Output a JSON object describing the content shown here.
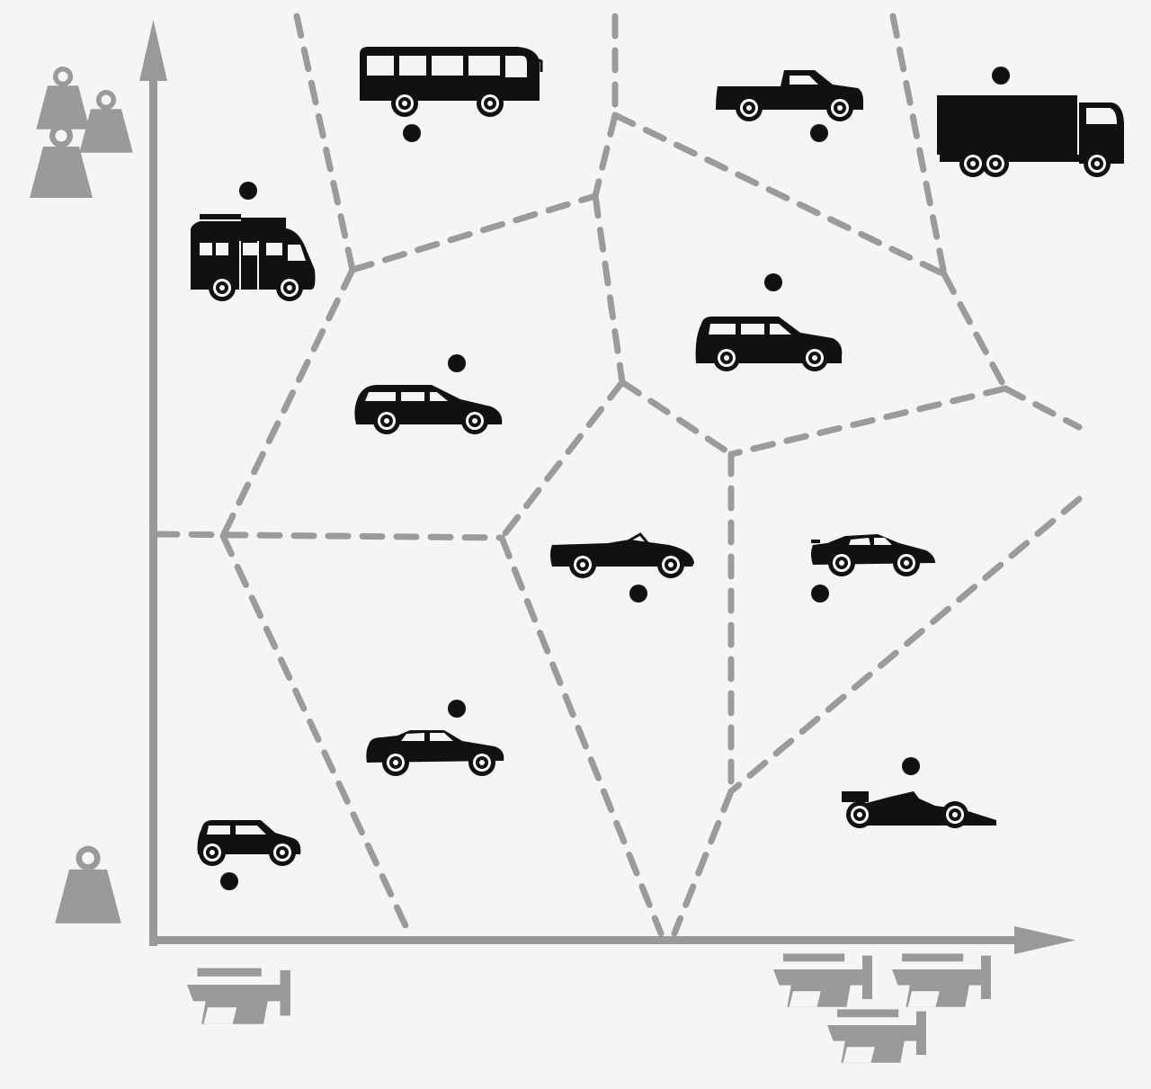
{
  "diagram": {
    "type": "voronoi-vehicle-map",
    "axes": {
      "x_axis_icon": "engine-power-icon",
      "x_low_icon_count": 1,
      "x_high_icon_count": 3,
      "y_axis_icon": "weight-icon",
      "y_low_icon_count": 1,
      "y_high_icon_count": 3
    },
    "colors": {
      "background": "#f4f5f6",
      "axis": "#999999",
      "cell_boundary": "#9b9b9b",
      "vehicle": "#111111",
      "site_point": "#111111"
    },
    "vehicles": [
      {
        "name": "bus"
      },
      {
        "name": "pickup-truck"
      },
      {
        "name": "lorry"
      },
      {
        "name": "camper-van"
      },
      {
        "name": "suv"
      },
      {
        "name": "station-wagon"
      },
      {
        "name": "convertible"
      },
      {
        "name": "sports-car"
      },
      {
        "name": "sedan"
      },
      {
        "name": "city-car"
      },
      {
        "name": "formula-race-car"
      }
    ]
  }
}
